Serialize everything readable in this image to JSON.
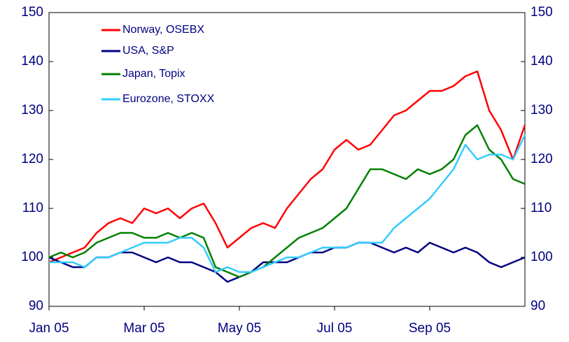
{
  "chart_data": {
    "type": "line",
    "categories": [
      "Jan 05",
      null,
      null,
      null,
      null,
      null,
      null,
      null,
      "Mar 05",
      null,
      null,
      null,
      null,
      null,
      null,
      null,
      "May 05",
      null,
      null,
      null,
      null,
      null,
      null,
      null,
      "Jul 05",
      null,
      null,
      null,
      null,
      null,
      null,
      null,
      "Sep 05",
      null,
      null,
      null,
      null,
      null,
      null,
      null,
      null
    ],
    "series": [
      {
        "name": "Norway, OSEBX",
        "color": "#ff0000",
        "values": [
          99,
          100,
          101,
          102,
          105,
          107,
          108,
          107,
          110,
          109,
          110,
          108,
          110,
          111,
          107,
          102,
          104,
          106,
          107,
          106,
          110,
          113,
          116,
          118,
          122,
          124,
          122,
          123,
          126,
          129,
          130,
          132,
          134,
          134,
          135,
          137,
          138,
          130,
          126,
          120,
          127
        ]
      },
      {
        "name": "USA, S&P",
        "color": "#000080",
        "values": [
          100,
          99,
          98,
          98,
          100,
          100,
          101,
          101,
          100,
          99,
          100,
          99,
          99,
          98,
          97,
          95,
          96,
          97,
          99,
          99,
          99,
          100,
          101,
          101,
          102,
          102,
          103,
          103,
          102,
          101,
          102,
          101,
          103,
          102,
          101,
          102,
          101,
          99,
          98,
          99,
          100
        ]
      },
      {
        "name": "Japan, Topix",
        "color": "#008000",
        "values": [
          100,
          101,
          100,
          101,
          103,
          104,
          105,
          105,
          104,
          104,
          105,
          104,
          105,
          104,
          98,
          97,
          96,
          97,
          98,
          100,
          102,
          104,
          105,
          106,
          108,
          110,
          114,
          118,
          118,
          117,
          116,
          118,
          117,
          118,
          120,
          125,
          127,
          122,
          120,
          116,
          115
        ]
      },
      {
        "name": "Eurozone, STOXX",
        "color": "#33ccff",
        "values": [
          99,
          99,
          99,
          98,
          100,
          100,
          101,
          102,
          103,
          103,
          103,
          104,
          104,
          102,
          97,
          98,
          97,
          97,
          98,
          99,
          100,
          100,
          101,
          102,
          102,
          102,
          103,
          103,
          103,
          106,
          108,
          110,
          112,
          115,
          118,
          123,
          120,
          121,
          121,
          120,
          125
        ]
      }
    ],
    "ylim": [
      90,
      150
    ],
    "yticks": [
      90,
      100,
      110,
      120,
      130,
      140,
      150
    ],
    "y2lim": [
      90,
      150
    ],
    "y2ticks": [
      90,
      100,
      110,
      120,
      130,
      140,
      150
    ],
    "legend": "upper left",
    "grid": false
  }
}
